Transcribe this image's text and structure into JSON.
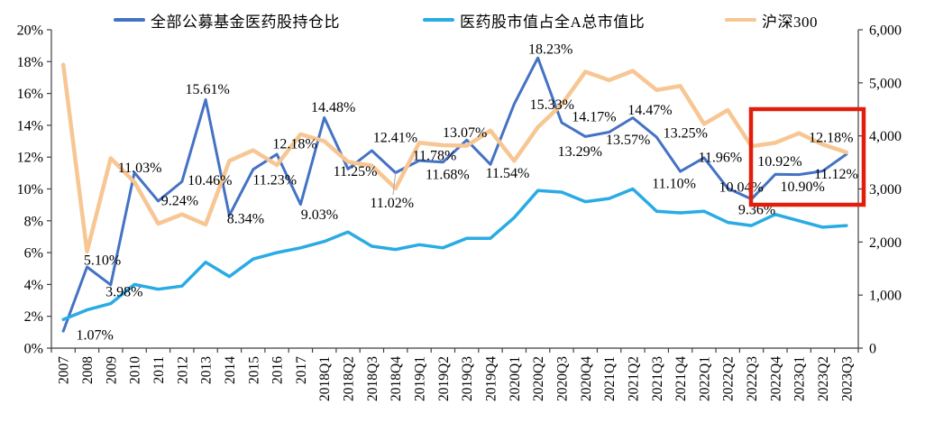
{
  "chart_data": {
    "type": "line",
    "title": "",
    "categories": [
      "2007",
      "2008",
      "2009",
      "2010",
      "2011",
      "2012",
      "2013",
      "2014",
      "2015",
      "2016",
      "2017",
      "2018Q1",
      "2018Q2",
      "2018Q3",
      "2018Q4",
      "2019Q1",
      "2019Q2",
      "2019Q3",
      "2019Q4",
      "2020Q1",
      "2020Q2",
      "2020Q3",
      "2020Q4",
      "2021Q1",
      "2021Q2",
      "2021Q3",
      "2021Q4",
      "2022Q1",
      "2022Q2",
      "2022Q3",
      "2022Q4",
      "2023Q1",
      "2023Q2",
      "2023Q3"
    ],
    "series": [
      {
        "name": "全部公募基金医药股持仓比",
        "axis": "left",
        "color": "#4472c4",
        "stroke_width": 3,
        "data_labels": true,
        "values": [
          1.07,
          5.1,
          3.98,
          11.03,
          9.24,
          10.46,
          15.61,
          8.34,
          11.23,
          12.18,
          9.03,
          14.48,
          11.25,
          12.41,
          11.02,
          11.78,
          11.68,
          13.07,
          11.54,
          15.33,
          18.23,
          14.17,
          13.29,
          13.57,
          14.47,
          13.25,
          11.1,
          11.96,
          10.04,
          9.36,
          10.92,
          10.9,
          11.12,
          12.18
        ]
      },
      {
        "name": "医药股市值占全A总市值比",
        "axis": "left",
        "color": "#29abe4",
        "stroke_width": 3.5,
        "data_labels": false,
        "values": [
          1.8,
          2.4,
          2.8,
          4.0,
          3.7,
          3.9,
          5.4,
          4.5,
          5.6,
          6.0,
          6.3,
          6.7,
          7.3,
          6.4,
          6.2,
          6.5,
          6.3,
          6.9,
          6.9,
          8.2,
          9.9,
          9.8,
          9.2,
          9.4,
          10.0,
          8.6,
          8.5,
          8.6,
          7.9,
          7.7,
          8.4,
          8.0,
          7.6,
          7.7
        ]
      },
      {
        "name": "沪深300",
        "axis": "right",
        "color": "#f7c693",
        "stroke_width": 4.5,
        "data_labels": false,
        "values": [
          5340,
          1820,
          3580,
          3130,
          2345,
          2520,
          2330,
          3530,
          3730,
          3450,
          4030,
          3900,
          3510,
          3440,
          3010,
          3870,
          3825,
          3815,
          4100,
          3530,
          4165,
          4590,
          5210,
          5050,
          5225,
          4865,
          4940,
          4225,
          4485,
          3805,
          3870,
          4050,
          3840,
          3690
        ]
      }
    ],
    "ylim_left": [
      0,
      20
    ],
    "ylim_right": [
      0,
      6000
    ],
    "grid": false,
    "legend_position": "top"
  },
  "left_axis": {
    "ticks": [
      "20%",
      "18%",
      "16%",
      "14%",
      "12%",
      "10%",
      "8%",
      "6%",
      "4%",
      "2%",
      "0%"
    ]
  },
  "right_axis": {
    "ticks": [
      "6,000",
      "5,000",
      "4,000",
      "3,000",
      "2,000",
      "1,000",
      "0"
    ]
  },
  "annotations": {
    "highlight_box": {
      "quarters": [
        "2022Q4",
        "2023Q1",
        "2023Q2",
        "2023Q3"
      ],
      "color": "#e11e0c"
    }
  }
}
